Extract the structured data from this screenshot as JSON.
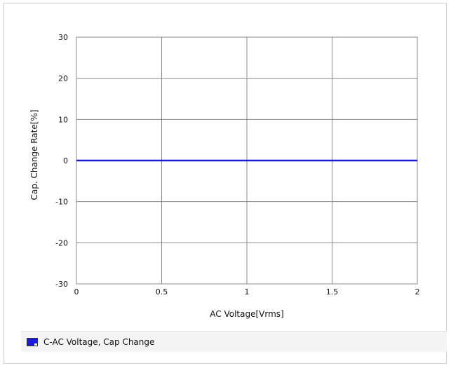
{
  "chart_data": {
    "type": "line",
    "xlabel": "AC Voltage[Vrms]",
    "ylabel": "Cap. Change Rate[%]",
    "xlim": [
      0,
      2
    ],
    "ylim": [
      -30,
      30
    ],
    "xticks": [
      "0",
      "0.5",
      "1",
      "1.5",
      "2"
    ],
    "yticks": [
      "30",
      "20",
      "10",
      "0",
      "-10",
      "-20",
      "-30"
    ],
    "grid": true,
    "legend_position": "bottom",
    "series": [
      {
        "name": "C-AC Voltage, Cap Change",
        "color": "#1a1ad8",
        "x": [
          0,
          0.5,
          1,
          1.5,
          2
        ],
        "y": [
          0,
          0,
          0,
          0,
          0
        ]
      }
    ]
  }
}
